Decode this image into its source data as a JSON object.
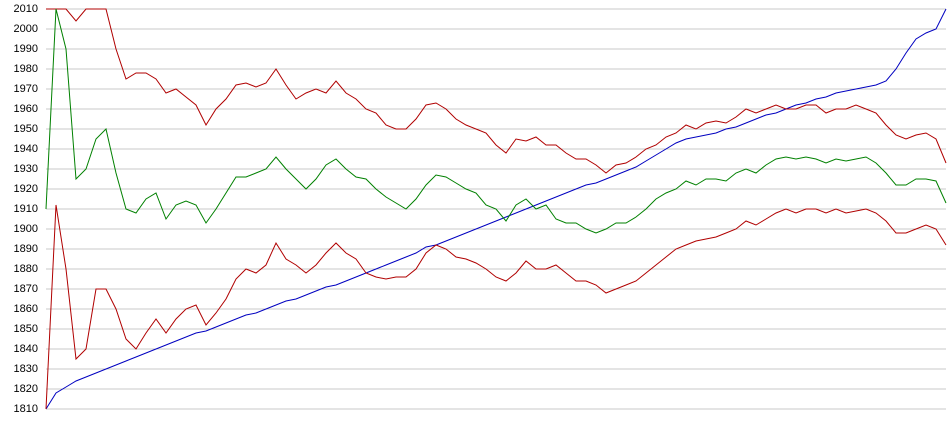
{
  "chart_data": {
    "type": "line",
    "ylim": [
      1810,
      2010
    ],
    "yticks": [
      1810,
      1820,
      1830,
      1840,
      1850,
      1860,
      1870,
      1880,
      1890,
      1900,
      1910,
      1920,
      1930,
      1940,
      1950,
      1960,
      1970,
      1980,
      1990,
      2000,
      2010
    ],
    "grid": true,
    "series": [
      {
        "color": "#0000c0",
        "values": [
          1810,
          1818,
          1821,
          1824,
          1826,
          1828,
          1830,
          1832,
          1834,
          1836,
          1838,
          1840,
          1842,
          1844,
          1846,
          1848,
          1849,
          1851,
          1853,
          1855,
          1857,
          1858,
          1860,
          1862,
          1864,
          1865,
          1867,
          1869,
          1871,
          1872,
          1874,
          1876,
          1878,
          1880,
          1882,
          1884,
          1886,
          1888,
          1891,
          1892,
          1894,
          1896,
          1898,
          1900,
          1902,
          1904,
          1906,
          1908,
          1910,
          1912,
          1914,
          1916,
          1918,
          1920,
          1922,
          1923,
          1925,
          1927,
          1929,
          1931,
          1934,
          1937,
          1940,
          1943,
          1945,
          1946,
          1947,
          1948,
          1950,
          1951,
          1953,
          1955,
          1957,
          1958,
          1960,
          1962,
          1963,
          1965,
          1966,
          1968,
          1969,
          1970,
          1971,
          1972,
          1974,
          1980,
          1988,
          1995,
          1998,
          2000,
          2010
        ]
      },
      {
        "color": "#b00000",
        "values": [
          2010,
          2010,
          2010,
          2004,
          2010,
          2010,
          2010,
          1990,
          1975,
          1978,
          1978,
          1975,
          1968,
          1970,
          1966,
          1962,
          1952,
          1960,
          1965,
          1972,
          1973,
          1971,
          1973,
          1980,
          1972,
          1965,
          1968,
          1970,
          1968,
          1974,
          1968,
          1965,
          1960,
          1958,
          1952,
          1950,
          1950,
          1955,
          1962,
          1963,
          1960,
          1955,
          1952,
          1950,
          1948,
          1942,
          1938,
          1945,
          1944,
          1946,
          1942,
          1942,
          1938,
          1935,
          1935,
          1932,
          1928,
          1932,
          1933,
          1936,
          1940,
          1942,
          1946,
          1948,
          1952,
          1950,
          1953,
          1954,
          1953,
          1956,
          1960,
          1958,
          1960,
          1962,
          1960,
          1960,
          1962,
          1962,
          1958,
          1960,
          1960,
          1962,
          1960,
          1958,
          1952,
          1947,
          1945,
          1947,
          1948,
          1945,
          1933
        ]
      },
      {
        "color": "#008000",
        "values": [
          1910,
          2010,
          1990,
          1925,
          1930,
          1945,
          1950,
          1928,
          1910,
          1908,
          1915,
          1918,
          1905,
          1912,
          1914,
          1912,
          1903,
          1910,
          1918,
          1926,
          1926,
          1928,
          1930,
          1936,
          1930,
          1925,
          1920,
          1925,
          1932,
          1935,
          1930,
          1926,
          1925,
          1920,
          1916,
          1913,
          1910,
          1915,
          1922,
          1927,
          1926,
          1923,
          1920,
          1918,
          1912,
          1910,
          1904,
          1912,
          1915,
          1910,
          1912,
          1905,
          1903,
          1903,
          1900,
          1898,
          1900,
          1903,
          1903,
          1906,
          1910,
          1915,
          1918,
          1920,
          1924,
          1922,
          1925,
          1925,
          1924,
          1928,
          1930,
          1928,
          1932,
          1935,
          1936,
          1935,
          1936,
          1935,
          1933,
          1935,
          1934,
          1935,
          1936,
          1933,
          1928,
          1922,
          1922,
          1925,
          1925,
          1924,
          1913
        ]
      },
      {
        "color": "#b00000",
        "values": [
          1810,
          1912,
          1880,
          1835,
          1840,
          1870,
          1870,
          1860,
          1845,
          1840,
          1848,
          1855,
          1848,
          1855,
          1860,
          1862,
          1852,
          1858,
          1865,
          1875,
          1880,
          1878,
          1882,
          1893,
          1885,
          1882,
          1878,
          1882,
          1888,
          1893,
          1888,
          1885,
          1878,
          1876,
          1875,
          1876,
          1876,
          1880,
          1888,
          1892,
          1890,
          1886,
          1885,
          1883,
          1880,
          1876,
          1874,
          1878,
          1884,
          1880,
          1880,
          1882,
          1878,
          1874,
          1874,
          1872,
          1868,
          1870,
          1872,
          1874,
          1878,
          1882,
          1886,
          1890,
          1892,
          1894,
          1895,
          1896,
          1898,
          1900,
          1904,
          1902,
          1905,
          1908,
          1910,
          1908,
          1910,
          1910,
          1908,
          1910,
          1908,
          1909,
          1910,
          1908,
          1904,
          1898,
          1898,
          1900,
          1902,
          1900,
          1892
        ]
      }
    ]
  }
}
